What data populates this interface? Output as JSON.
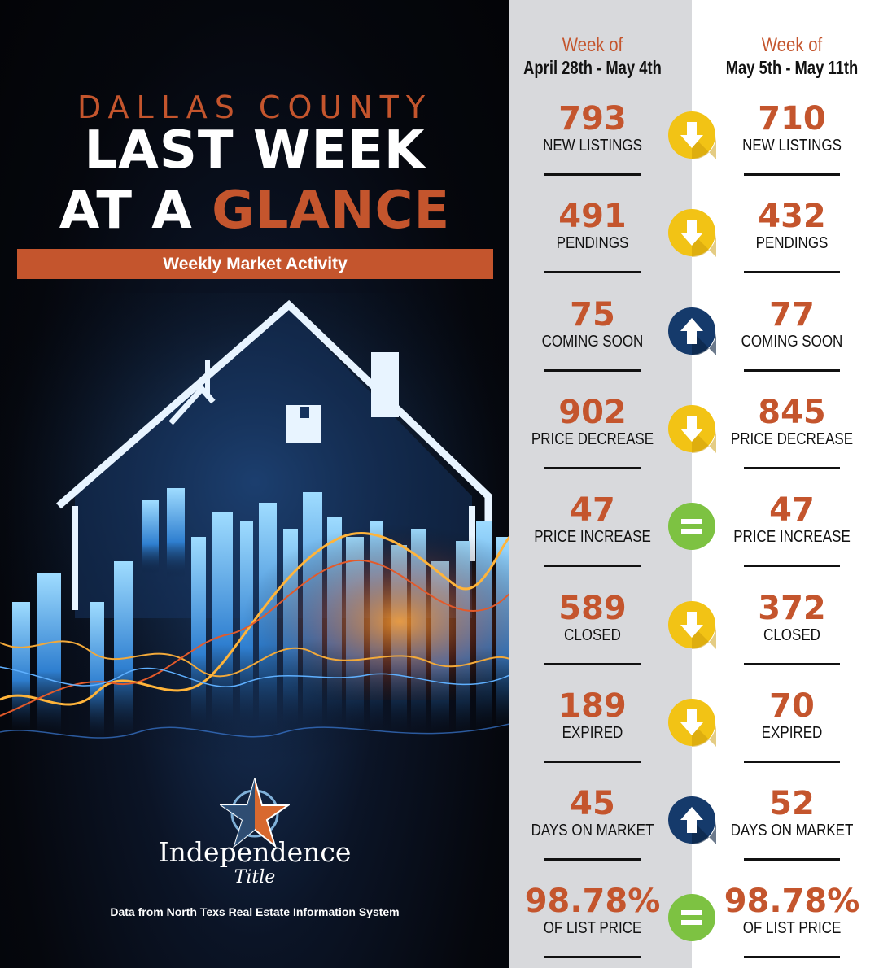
{
  "header": {
    "county": "DALLAS COUNTY",
    "line1": "LAST WEEK",
    "line2_white": "AT A",
    "line2_orange": "GLANCE",
    "ribbon": "Weekly Market Activity"
  },
  "brand": {
    "name": "Independence",
    "sub": "Title",
    "source": "Data from North Texs Real Estate Information System"
  },
  "colors": {
    "accent": "#c4552d",
    "down": "#f2c315",
    "up": "#153a6b",
    "equal": "#7dc242"
  },
  "weeks": {
    "prev": {
      "label": "Week of",
      "range": "April 28th - May 4th"
    },
    "curr": {
      "label": "Week of",
      "range": "May 5th - May 11th"
    }
  },
  "metrics": [
    {
      "label": "NEW LISTINGS",
      "prev": "793",
      "curr": "710",
      "trend": "down"
    },
    {
      "label": "PENDINGS",
      "prev": "491",
      "curr": "432",
      "trend": "down"
    },
    {
      "label": "COMING SOON",
      "prev": "75",
      "curr": "77",
      "trend": "up"
    },
    {
      "label": "PRICE DECREASE",
      "prev": "902",
      "curr": "845",
      "trend": "down"
    },
    {
      "label": "PRICE INCREASE",
      "prev": "47",
      "curr": "47",
      "trend": "equal"
    },
    {
      "label": "CLOSED",
      "prev": "589",
      "curr": "372",
      "trend": "down"
    },
    {
      "label": "EXPIRED",
      "prev": "189",
      "curr": "70",
      "trend": "down"
    },
    {
      "label": "DAYS ON MARKET",
      "prev": "45",
      "curr": "52",
      "trend": "up"
    },
    {
      "label": "OF LIST PRICE",
      "prev": "98.78%",
      "curr": "98.78%",
      "trend": "equal"
    }
  ]
}
